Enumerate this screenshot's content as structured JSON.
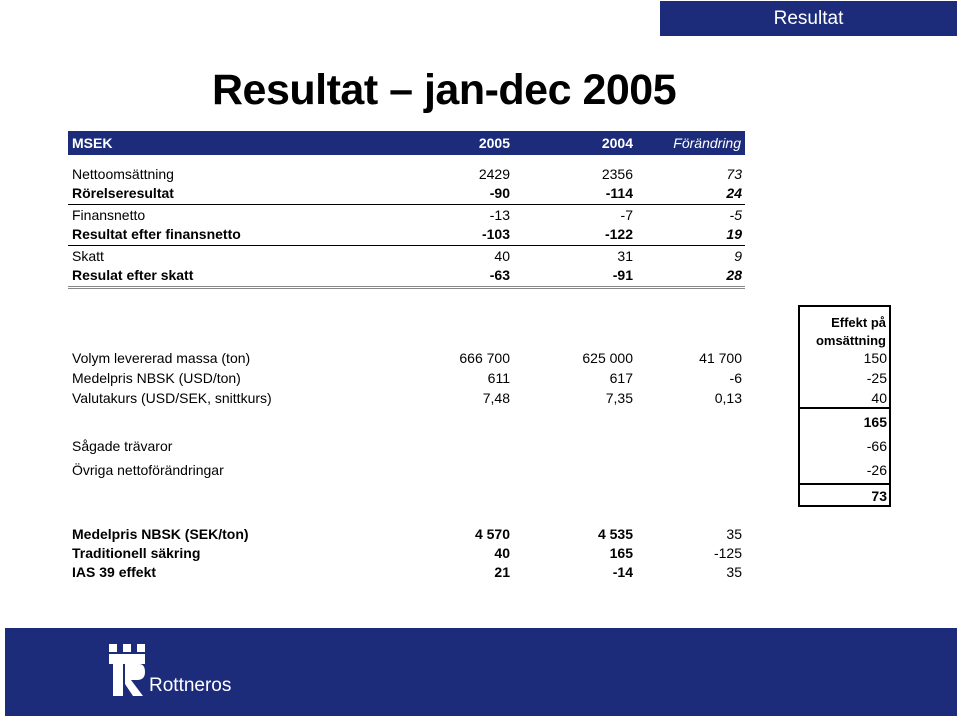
{
  "tag": "Resultat",
  "title": "Resultat – jan-dec 2005",
  "header": {
    "label": "MSEK",
    "c2005": "2005",
    "c2004": "2004",
    "change": "Förändring"
  },
  "rows": [
    {
      "label": "Nettoomsättning",
      "v2005": "2429",
      "v2004": "2356",
      "change": "73"
    },
    {
      "label": "Rörelseresultat",
      "v2005": "-90",
      "v2004": "-114",
      "change": "24"
    },
    {
      "label": "Finansnetto",
      "v2005": "-13",
      "v2004": "-7",
      "change": "-5"
    },
    {
      "label": "Resultat efter finansnetto",
      "v2005": "-103",
      "v2004": "-122",
      "change": "19"
    },
    {
      "label": "Skatt",
      "v2005": "40",
      "v2004": "31",
      "change": "9"
    },
    {
      "label": "Resulat efter skatt",
      "v2005": "-63",
      "v2004": "-91",
      "change": "28"
    }
  ],
  "effect_header": [
    "Effekt på",
    "omsättning"
  ],
  "drivers": [
    {
      "label": "Volym levererad massa (ton)",
      "v2005": "666 700",
      "v2004": "625 000",
      "change": "41 700",
      "effect": "150"
    },
    {
      "label": "Medelpris NBSK (USD/ton)",
      "v2005": "611",
      "v2004": "617",
      "change": "-6",
      "effect": "-25"
    },
    {
      "label": "Valutakurs (USD/SEK, snittkurs)",
      "v2005": "7,48",
      "v2004": "7,35",
      "change": "0,13",
      "effect": "40"
    }
  ],
  "subtotal": "165",
  "others": [
    {
      "label": "Sågade trävaror",
      "effect": "-66"
    },
    {
      "label": "Övriga nettoförändringar",
      "effect": "-26"
    }
  ],
  "total": "73",
  "bottom": [
    {
      "label": "Medelpris NBSK (SEK/ton)",
      "v2005": "4 570",
      "v2004": "4 535",
      "change": "35"
    },
    {
      "label": "Traditionell säkring",
      "v2005": "40",
      "v2004": "165",
      "change": "-125"
    },
    {
      "label": "IAS 39 effekt",
      "v2005": "21",
      "v2004": "-14",
      "change": "35"
    }
  ],
  "logo": {
    "name": "Rottneros",
    "icon": "rottneros-logo-icon"
  },
  "colors": {
    "navy": "#1c2c7a"
  }
}
